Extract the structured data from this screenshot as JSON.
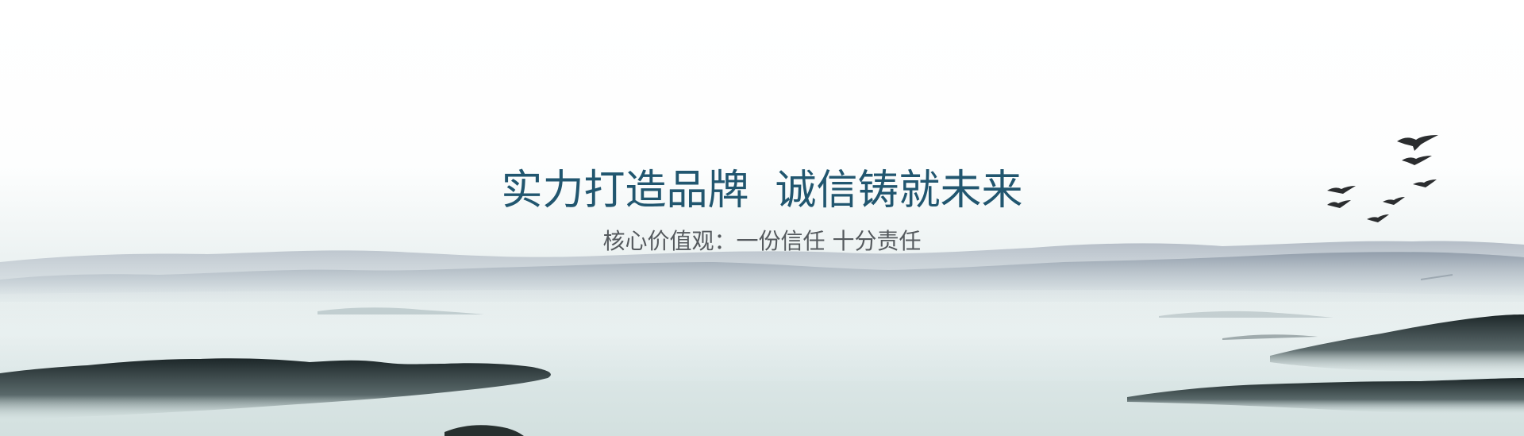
{
  "banner": {
    "headline": "实力打造品牌  诚信铸就未来",
    "subheadline": "核心价值观：一份信任 十分责任"
  },
  "colors": {
    "headline": "#21566f",
    "subheadline": "#555a5e",
    "mist": "#e6eeee",
    "far_mountains": "#9aa5b2",
    "near_hills": "#1f2a2c"
  },
  "imagery": {
    "scene": "ink-wash-landscape",
    "birds": "flying-birds-icon"
  }
}
